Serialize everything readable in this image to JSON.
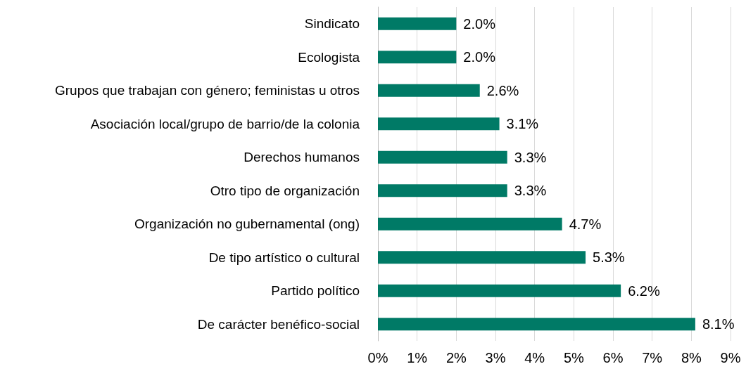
{
  "chart_data": {
    "type": "bar",
    "orientation": "horizontal",
    "categories": [
      "Sindicato",
      "Ecologista",
      "Grupos que trabajan con género; feministas u otros",
      "Asociación local/grupo de barrio/de la colonia",
      "Derechos humanos",
      "Otro tipo de organización",
      "Organización no gubernamental (ong)",
      "De tipo artístico o cultural",
      "Partido político",
      "De carácter benéfico-social"
    ],
    "values": [
      2.0,
      2.0,
      2.6,
      3.1,
      3.3,
      3.3,
      4.7,
      5.3,
      6.2,
      8.1
    ],
    "value_labels": [
      "2.0%",
      "2.0%",
      "2.6%",
      "3.1%",
      "3.3%",
      "3.3%",
      "4.7%",
      "5.3%",
      "6.2%",
      "8.1%"
    ],
    "color": "#007a66",
    "xlim": [
      0,
      9
    ],
    "xticks": [
      {
        "value": 0,
        "label": "0%"
      },
      {
        "value": 1,
        "label": "1%"
      },
      {
        "value": 2,
        "label": "2%"
      },
      {
        "value": 3,
        "label": "3%"
      },
      {
        "value": 4,
        "label": "4%"
      },
      {
        "value": 5,
        "label": "5%"
      },
      {
        "value": 6,
        "label": "6%"
      },
      {
        "value": 7,
        "label": "7%"
      },
      {
        "value": 8,
        "label": "8%"
      },
      {
        "value": 9,
        "label": "9%"
      }
    ],
    "grid": "x"
  }
}
